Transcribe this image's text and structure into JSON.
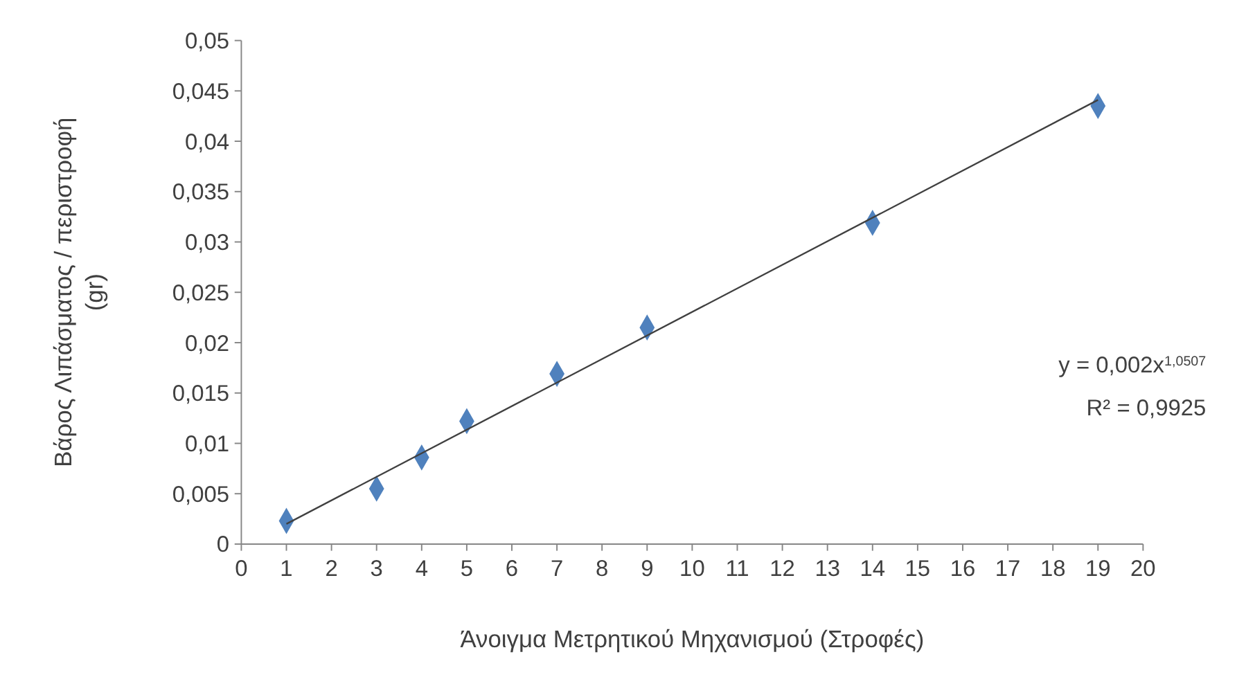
{
  "chart_data": {
    "type": "scatter",
    "xlabel": "Άνοιγμα Μετρητικού Μηχανισμού (Στροφές)",
    "ylabel": "Βάρος Λιπάσματος / περιστροφή (gr)",
    "xlim": [
      0,
      20
    ],
    "xticks": [
      0,
      1,
      2,
      3,
      4,
      5,
      6,
      7,
      8,
      9,
      10,
      11,
      12,
      13,
      14,
      15,
      16,
      17,
      18,
      19,
      20
    ],
    "ylim": [
      0,
      0.05
    ],
    "yticks": [
      0,
      {
        "value": 0.005,
        "label": "0,005"
      },
      {
        "value": 0.01,
        "label": "0,01"
      },
      {
        "value": 0.015,
        "label": "0,015"
      },
      {
        "value": 0.02,
        "label": "0,02"
      },
      {
        "value": 0.025,
        "label": "0,025"
      },
      {
        "value": 0.03,
        "label": "0,03"
      },
      {
        "value": 0.035,
        "label": "0,035"
      },
      {
        "value": 0.04,
        "label": "0,04"
      },
      {
        "value": 0.045,
        "label": "0,045"
      },
      {
        "value": 0.05,
        "label": "0,05"
      }
    ],
    "grid": false,
    "series": [
      {
        "color": "#4f81bd",
        "marker": "diamond",
        "x": [
          1,
          3,
          4,
          5,
          7,
          9,
          14,
          19
        ],
        "values": [
          0.0023,
          0.0055,
          0.0086,
          0.0122,
          0.0169,
          0.0215,
          0.0319,
          0.0435
        ]
      },
      {
        "type": "line",
        "color": "#404040",
        "marker": "none",
        "line_style": "solid",
        "x": [
          1,
          19
        ],
        "values": [
          0.002,
          0.0441
        ]
      }
    ],
    "annotations": [
      "y = 0,002x$^{1,0507}$",
      "R² = 0,9925"
    ]
  }
}
